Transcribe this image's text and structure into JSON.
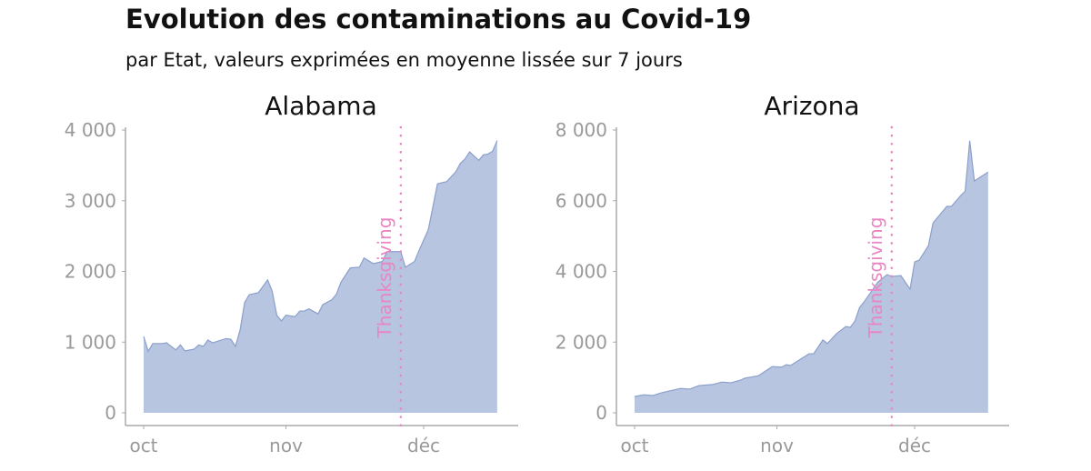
{
  "title": "Evolution des contaminations au Covid-19",
  "subtitle": "par Etat, valeurs exprimées en moyenne lissée sur 7 jours",
  "colors": {
    "fill": "#b8c5e0",
    "line": "#8a9fcc",
    "annotation": "#ea85c3",
    "axis": "#999999"
  },
  "chart_data": [
    {
      "type": "area",
      "title": "Alabama",
      "ylim": [
        0,
        4000
      ],
      "yticks": [
        0,
        1000,
        2000,
        3000,
        4000
      ],
      "ytick_labels": [
        "0",
        "1 000",
        "2 000",
        "3 000",
        "4 000"
      ],
      "xticks": [
        "10-01",
        "11-01",
        "12-01"
      ],
      "xtick_labels": [
        "oct",
        "nov",
        "déc"
      ],
      "grid": false,
      "annotation": {
        "label": "Thanksgiving",
        "x": "11-26",
        "style": "dotted vertical line"
      },
      "x": [
        "10-01",
        "10-02",
        "10-03",
        "10-05",
        "10-06",
        "10-08",
        "10-09",
        "10-10",
        "10-12",
        "10-13",
        "10-14",
        "10-15",
        "10-16",
        "10-19",
        "10-20",
        "10-21",
        "10-22",
        "10-23",
        "10-24",
        "10-26",
        "10-28",
        "10-29",
        "10-30",
        "10-31",
        "11-01",
        "11-03",
        "11-04",
        "11-05",
        "11-06",
        "11-08",
        "11-09",
        "11-11",
        "11-12",
        "11-13",
        "11-15",
        "11-17",
        "11-18",
        "11-20",
        "11-22",
        "11-23",
        "11-26",
        "11-27",
        "11-29",
        "11-30",
        "12-02",
        "12-04",
        "12-06",
        "12-08",
        "12-09",
        "12-10",
        "12-11",
        "12-13",
        "12-14",
        "12-15",
        "12-16",
        "12-17"
      ],
      "values": [
        1080,
        870,
        980,
        980,
        990,
        890,
        960,
        875,
        900,
        960,
        940,
        1030,
        990,
        1050,
        1040,
        940,
        1170,
        1560,
        1670,
        1700,
        1880,
        1720,
        1380,
        1300,
        1380,
        1360,
        1440,
        1440,
        1470,
        1400,
        1530,
        1600,
        1680,
        1850,
        2050,
        2060,
        2190,
        2110,
        2140,
        2280,
        2280,
        2060,
        2140,
        2300,
        2590,
        3240,
        3270,
        3410,
        3530,
        3590,
        3690,
        3570,
        3650,
        3660,
        3700,
        3850
      ]
    },
    {
      "type": "area",
      "title": "Arizona",
      "ylim": [
        0,
        8000
      ],
      "yticks": [
        0,
        2000,
        4000,
        6000,
        8000
      ],
      "ytick_labels": [
        "0",
        "2 000",
        "4 000",
        "6 000",
        "8 000"
      ],
      "xticks": [
        "10-01",
        "11-01",
        "12-01"
      ],
      "xtick_labels": [
        "oct",
        "nov",
        "déc"
      ],
      "grid": false,
      "annotation": {
        "label": "Thanksgiving",
        "x": "11-26",
        "style": "dotted vertical line"
      },
      "x": [
        "10-01",
        "10-03",
        "10-05",
        "10-07",
        "10-11",
        "10-13",
        "10-15",
        "10-18",
        "10-20",
        "10-22",
        "10-24",
        "10-25",
        "10-28",
        "10-31",
        "11-02",
        "11-03",
        "11-04",
        "11-08",
        "11-09",
        "11-11",
        "11-12",
        "11-14",
        "11-16",
        "11-17",
        "11-18",
        "11-19",
        "11-20",
        "11-23",
        "11-25",
        "11-26",
        "11-28",
        "11-30",
        "12-01",
        "12-02",
        "12-04",
        "12-05",
        "12-08",
        "12-09",
        "12-11",
        "12-12",
        "12-13",
        "12-14",
        "12-17"
      ],
      "values": [
        460,
        510,
        490,
        570,
        690,
        670,
        770,
        800,
        870,
        850,
        920,
        980,
        1050,
        1310,
        1290,
        1360,
        1340,
        1670,
        1670,
        2060,
        1960,
        2240,
        2440,
        2420,
        2600,
        2980,
        3140,
        3700,
        3910,
        3860,
        3880,
        3500,
        4270,
        4320,
        4730,
        5370,
        5840,
        5840,
        6140,
        6270,
        7700,
        6560,
        6810
      ]
    }
  ]
}
